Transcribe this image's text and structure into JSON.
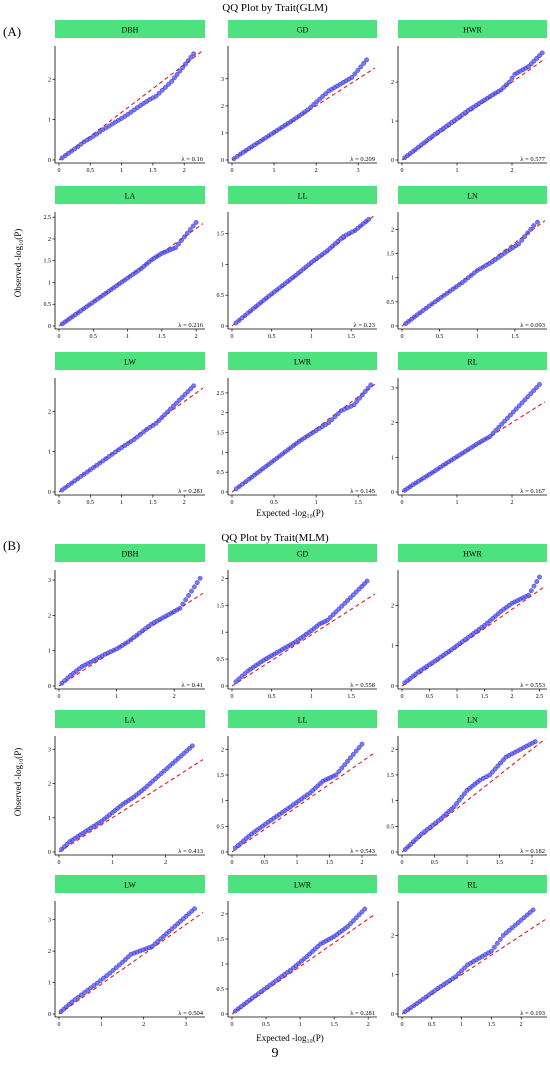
{
  "figure": {
    "sections": [
      {
        "tag": "(A)",
        "title": "QQ Plot by Trait(GLM)",
        "ylabel": "Observed -log₁₀(P)",
        "xlabel": "Expected -log₁₀(P)"
      },
      {
        "tag": "(B)",
        "title": "QQ Plot by Trait(MLM)",
        "ylabel": "Observed -log₁₀(P)",
        "xlabel": "Expected -log₁₀(P)"
      }
    ],
    "page_number": "9",
    "colors": {
      "header_fill": "#4ee27e",
      "points": "#4c4cf2",
      "point_edge": "#3030c0",
      "reference_line": "#e31a1c"
    }
  },
  "chart_data": [
    {
      "type": "scatter",
      "section": "A",
      "panel": "DBH",
      "lambda": "λ = 0.16",
      "xlim": [
        0,
        2.3
      ],
      "ylim": [
        0,
        2.75
      ],
      "xticks": [
        0,
        0.5,
        1,
        1.5,
        2
      ],
      "yticks": [
        0,
        1,
        2
      ],
      "ref_slope": 1.18,
      "points": [
        [
          0.05,
          0.05
        ],
        [
          0.1,
          0.11
        ],
        [
          0.2,
          0.22
        ],
        [
          0.3,
          0.33
        ],
        [
          0.4,
          0.45
        ],
        [
          0.5,
          0.54
        ],
        [
          0.6,
          0.64
        ],
        [
          0.7,
          0.75
        ],
        [
          0.8,
          0.84
        ],
        [
          0.9,
          0.94
        ],
        [
          1.0,
          1.03
        ],
        [
          1.1,
          1.13
        ],
        [
          1.3,
          1.35
        ],
        [
          1.45,
          1.5
        ],
        [
          1.55,
          1.58
        ],
        [
          1.8,
          1.95
        ],
        [
          2.15,
          2.63
        ]
      ]
    },
    {
      "type": "scatter",
      "section": "A",
      "panel": "GD",
      "lambda": "λ = 0.209",
      "xlim": [
        0,
        3.4
      ],
      "ylim": [
        0,
        4.1
      ],
      "xticks": [
        0,
        1,
        2,
        3
      ],
      "yticks": [
        0,
        1,
        2,
        3
      ],
      "ref_slope": 1.0,
      "points": [
        [
          0.05,
          0.05
        ],
        [
          0.2,
          0.22
        ],
        [
          0.4,
          0.42
        ],
        [
          0.6,
          0.62
        ],
        [
          0.8,
          0.82
        ],
        [
          1.0,
          1.02
        ],
        [
          1.2,
          1.22
        ],
        [
          1.4,
          1.42
        ],
        [
          1.6,
          1.63
        ],
        [
          1.8,
          1.85
        ],
        [
          2.3,
          2.55
        ],
        [
          2.85,
          3.05
        ],
        [
          3.2,
          3.7
        ]
      ]
    },
    {
      "type": "scatter",
      "section": "A",
      "panel": "HWR",
      "lambda": "λ = 0.577",
      "xlim": [
        0,
        2.6
      ],
      "ylim": [
        0,
        2.85
      ],
      "xticks": [
        0,
        1,
        2
      ],
      "yticks": [
        0,
        1,
        2
      ],
      "ref_slope": 1.0,
      "points": [
        [
          0.05,
          0.06
        ],
        [
          0.2,
          0.22
        ],
        [
          0.4,
          0.44
        ],
        [
          0.6,
          0.66
        ],
        [
          0.8,
          0.86
        ],
        [
          1.0,
          1.06
        ],
        [
          1.2,
          1.27
        ],
        [
          1.4,
          1.45
        ],
        [
          1.6,
          1.63
        ],
        [
          1.8,
          1.8
        ],
        [
          1.95,
          2.0
        ],
        [
          2.05,
          2.2
        ],
        [
          2.3,
          2.4
        ],
        [
          2.55,
          2.75
        ]
      ]
    },
    {
      "type": "scatter",
      "section": "A",
      "panel": "LA",
      "lambda": "λ = 0.216",
      "xlim": [
        0,
        2.1
      ],
      "ylim": [
        0,
        2.55
      ],
      "xticks": [
        0,
        0.5,
        1,
        1.5,
        2
      ],
      "yticks": [
        0,
        0.5,
        1,
        1.5,
        2,
        2.5
      ],
      "ref_slope": 1.12,
      "points": [
        [
          0.05,
          0.05
        ],
        [
          0.2,
          0.22
        ],
        [
          0.4,
          0.44
        ],
        [
          0.6,
          0.66
        ],
        [
          0.8,
          0.88
        ],
        [
          1.0,
          1.1
        ],
        [
          1.2,
          1.32
        ],
        [
          1.35,
          1.52
        ],
        [
          1.5,
          1.67
        ],
        [
          1.7,
          1.8
        ],
        [
          2.0,
          2.38
        ]
      ]
    },
    {
      "type": "scatter",
      "section": "A",
      "panel": "LL",
      "lambda": "λ = 0.23",
      "xlim": [
        0,
        1.8
      ],
      "ylim": [
        0,
        1.8
      ],
      "xticks": [
        0,
        0.5,
        1,
        1.5
      ],
      "yticks": [
        0,
        0.5,
        1,
        1.5
      ],
      "ref_slope": 1.0,
      "points": [
        [
          0.05,
          0.05
        ],
        [
          0.2,
          0.21
        ],
        [
          0.4,
          0.42
        ],
        [
          0.6,
          0.62
        ],
        [
          0.8,
          0.82
        ],
        [
          1.0,
          1.03
        ],
        [
          1.2,
          1.22
        ],
        [
          1.4,
          1.45
        ],
        [
          1.55,
          1.55
        ],
        [
          1.72,
          1.73
        ]
      ]
    },
    {
      "type": "scatter",
      "section": "A",
      "panel": "LN",
      "lambda": "λ = 0.093",
      "xlim": [
        0,
        1.9
      ],
      "ylim": [
        0,
        2.3
      ],
      "xticks": [
        0,
        0.5,
        1,
        1.5
      ],
      "yticks": [
        0,
        0.5,
        1,
        1.5,
        2
      ],
      "ref_slope": 1.15,
      "points": [
        [
          0.05,
          0.05
        ],
        [
          0.2,
          0.23
        ],
        [
          0.4,
          0.46
        ],
        [
          0.6,
          0.68
        ],
        [
          0.8,
          0.9
        ],
        [
          1.0,
          1.15
        ],
        [
          1.2,
          1.33
        ],
        [
          1.4,
          1.55
        ],
        [
          1.55,
          1.7
        ],
        [
          1.75,
          2.08
        ],
        [
          1.8,
          2.15
        ]
      ]
    },
    {
      "type": "scatter",
      "section": "A",
      "panel": "LW",
      "lambda": "λ = 0.281",
      "xlim": [
        0,
        2.3
      ],
      "ylim": [
        0,
        2.75
      ],
      "xticks": [
        0,
        0.5,
        1,
        1.5,
        2
      ],
      "yticks": [
        0,
        1,
        2
      ],
      "ref_slope": 1.12,
      "points": [
        [
          0.05,
          0.05
        ],
        [
          0.2,
          0.22
        ],
        [
          0.4,
          0.44
        ],
        [
          0.6,
          0.66
        ],
        [
          0.8,
          0.88
        ],
        [
          1.0,
          1.1
        ],
        [
          1.2,
          1.3
        ],
        [
          1.4,
          1.55
        ],
        [
          1.55,
          1.7
        ],
        [
          2.15,
          2.63
        ]
      ]
    },
    {
      "type": "scatter",
      "section": "A",
      "panel": "LWR",
      "lambda": "λ = 0.145",
      "xlim": [
        0,
        1.7
      ],
      "ylim": [
        0,
        2.8
      ],
      "xticks": [
        0,
        0.5,
        1,
        1.5
      ],
      "yticks": [
        0,
        0.5,
        1,
        1.5,
        2,
        2.5
      ],
      "ref_slope": 1.6,
      "points": [
        [
          0.05,
          0.08
        ],
        [
          0.2,
          0.32
        ],
        [
          0.4,
          0.64
        ],
        [
          0.6,
          0.96
        ],
        [
          0.8,
          1.28
        ],
        [
          1.0,
          1.55
        ],
        [
          1.15,
          1.75
        ],
        [
          1.3,
          2.05
        ],
        [
          1.45,
          2.2
        ],
        [
          1.65,
          2.7
        ]
      ]
    },
    {
      "type": "scatter",
      "section": "A",
      "panel": "RL",
      "lambda": "λ = 0.167",
      "xlim": [
        0,
        2.6
      ],
      "ylim": [
        0,
        3.2
      ],
      "xticks": [
        0,
        1,
        2
      ],
      "yticks": [
        0,
        1,
        2,
        3
      ],
      "ref_slope": 1.0,
      "points": [
        [
          0.05,
          0.05
        ],
        [
          0.2,
          0.21
        ],
        [
          0.4,
          0.41
        ],
        [
          0.6,
          0.61
        ],
        [
          0.8,
          0.82
        ],
        [
          1.0,
          1.02
        ],
        [
          1.2,
          1.22
        ],
        [
          1.4,
          1.42
        ],
        [
          1.6,
          1.6
        ],
        [
          2.5,
          3.1
        ]
      ]
    },
    {
      "type": "scatter",
      "section": "B",
      "panel": "DBH",
      "lambda": "λ = 0.41",
      "xlim": [
        0,
        2.5
      ],
      "ylim": [
        0,
        3.2
      ],
      "xticks": [
        0,
        1,
        2
      ],
      "yticks": [
        0,
        1,
        2,
        3
      ],
      "ref_slope": 1.05,
      "points": [
        [
          0.05,
          0.08
        ],
        [
          0.2,
          0.3
        ],
        [
          0.4,
          0.55
        ],
        [
          0.6,
          0.72
        ],
        [
          0.8,
          0.9
        ],
        [
          1.0,
          1.05
        ],
        [
          1.2,
          1.25
        ],
        [
          1.4,
          1.5
        ],
        [
          1.6,
          1.75
        ],
        [
          2.1,
          2.2
        ],
        [
          2.45,
          3.05
        ]
      ]
    },
    {
      "type": "scatter",
      "section": "B",
      "panel": "GD",
      "lambda": "λ = 0.558",
      "xlim": [
        0,
        1.8
      ],
      "ylim": [
        0,
        2.1
      ],
      "xticks": [
        0,
        0.5,
        1,
        1.5
      ],
      "yticks": [
        0,
        0.5,
        1,
        1.5,
        2
      ],
      "ref_slope": 0.95,
      "points": [
        [
          0.05,
          0.08
        ],
        [
          0.2,
          0.28
        ],
        [
          0.4,
          0.48
        ],
        [
          0.6,
          0.65
        ],
        [
          0.8,
          0.82
        ],
        [
          1.0,
          1.03
        ],
        [
          1.1,
          1.15
        ],
        [
          1.2,
          1.22
        ],
        [
          1.6,
          1.8
        ],
        [
          1.7,
          1.95
        ]
      ]
    },
    {
      "type": "scatter",
      "section": "B",
      "panel": "HWR",
      "lambda": "λ = 0.553",
      "xlim": [
        0,
        2.6
      ],
      "ylim": [
        0,
        2.8
      ],
      "xticks": [
        0,
        0.5,
        1,
        1.5,
        2,
        2.5
      ],
      "yticks": [
        0,
        1,
        2
      ],
      "ref_slope": 0.95,
      "points": [
        [
          0.05,
          0.08
        ],
        [
          0.3,
          0.35
        ],
        [
          0.6,
          0.62
        ],
        [
          0.9,
          0.9
        ],
        [
          1.2,
          1.2
        ],
        [
          1.5,
          1.5
        ],
        [
          1.8,
          1.85
        ],
        [
          2.0,
          2.05
        ],
        [
          2.3,
          2.25
        ],
        [
          2.5,
          2.7
        ]
      ]
    },
    {
      "type": "scatter",
      "section": "B",
      "panel": "LA",
      "lambda": "λ = 0.413",
      "xlim": [
        0,
        2.7
      ],
      "ylim": [
        0,
        3.3
      ],
      "xticks": [
        0,
        1,
        2
      ],
      "yticks": [
        0,
        1,
        2,
        3
      ],
      "ref_slope": 1.0,
      "points": [
        [
          0.05,
          0.08
        ],
        [
          0.2,
          0.3
        ],
        [
          0.4,
          0.5
        ],
        [
          0.6,
          0.7
        ],
        [
          0.8,
          0.9
        ],
        [
          1.0,
          1.15
        ],
        [
          1.2,
          1.4
        ],
        [
          1.4,
          1.6
        ],
        [
          1.6,
          1.85
        ],
        [
          2.5,
          3.1
        ]
      ]
    },
    {
      "type": "scatter",
      "section": "B",
      "panel": "LL",
      "lambda": "λ = 0.543",
      "xlim": [
        0,
        2.2
      ],
      "ylim": [
        0,
        2.2
      ],
      "xticks": [
        0,
        0.5,
        1,
        1.5,
        2
      ],
      "yticks": [
        0,
        0.5,
        1,
        1.5,
        2
      ],
      "ref_slope": 0.88,
      "points": [
        [
          0.05,
          0.08
        ],
        [
          0.3,
          0.35
        ],
        [
          0.6,
          0.62
        ],
        [
          0.9,
          0.88
        ],
        [
          1.2,
          1.15
        ],
        [
          1.4,
          1.38
        ],
        [
          1.6,
          1.5
        ],
        [
          2.0,
          2.1
        ]
      ]
    },
    {
      "type": "scatter",
      "section": "B",
      "panel": "LN",
      "lambda": "λ = 0.182",
      "xlim": [
        0,
        2.2
      ],
      "ylim": [
        0,
        2.2
      ],
      "xticks": [
        0,
        0.5,
        1,
        1.5,
        2
      ],
      "yticks": [
        0,
        0.5,
        1,
        1.5,
        2
      ],
      "ref_slope": 1.0,
      "points": [
        [
          0.05,
          0.05
        ],
        [
          0.3,
          0.35
        ],
        [
          0.6,
          0.65
        ],
        [
          0.8,
          0.88
        ],
        [
          1.0,
          1.2
        ],
        [
          1.2,
          1.4
        ],
        [
          1.35,
          1.5
        ],
        [
          1.6,
          1.85
        ],
        [
          2.05,
          2.15
        ]
      ]
    },
    {
      "type": "scatter",
      "section": "B",
      "panel": "LW",
      "lambda": "λ = 0.504",
      "xlim": [
        0,
        3.4
      ],
      "ylim": [
        0,
        3.5
      ],
      "xticks": [
        0,
        1,
        2,
        3
      ],
      "yticks": [
        0,
        1,
        2,
        3
      ],
      "ref_slope": 0.95,
      "points": [
        [
          0.05,
          0.08
        ],
        [
          0.3,
          0.38
        ],
        [
          0.6,
          0.68
        ],
        [
          0.9,
          0.98
        ],
        [
          1.2,
          1.3
        ],
        [
          1.5,
          1.65
        ],
        [
          1.7,
          1.9
        ],
        [
          2.2,
          2.15
        ],
        [
          3.2,
          3.35
        ]
      ]
    },
    {
      "type": "scatter",
      "section": "B",
      "panel": "LWR",
      "lambda": "λ = 0.281",
      "xlim": [
        0,
        2.1
      ],
      "ylim": [
        0,
        2.2
      ],
      "xticks": [
        0,
        0.5,
        1,
        1.5,
        2
      ],
      "yticks": [
        0,
        0.5,
        1,
        1.5,
        2
      ],
      "ref_slope": 0.95,
      "points": [
        [
          0.05,
          0.06
        ],
        [
          0.3,
          0.32
        ],
        [
          0.6,
          0.62
        ],
        [
          0.9,
          0.92
        ],
        [
          1.1,
          1.15
        ],
        [
          1.3,
          1.4
        ],
        [
          1.5,
          1.55
        ],
        [
          1.7,
          1.75
        ],
        [
          1.95,
          2.1
        ]
      ]
    },
    {
      "type": "scatter",
      "section": "B",
      "panel": "RL",
      "lambda": "λ = 0.193",
      "xlim": [
        0,
        2.4
      ],
      "ylim": [
        0,
        2.8
      ],
      "xticks": [
        0,
        0.5,
        1,
        1.5,
        2
      ],
      "yticks": [
        0,
        1,
        2
      ],
      "ref_slope": 1.0,
      "points": [
        [
          0.05,
          0.06
        ],
        [
          0.3,
          0.32
        ],
        [
          0.6,
          0.65
        ],
        [
          0.9,
          0.95
        ],
        [
          1.1,
          1.25
        ],
        [
          1.5,
          1.6
        ],
        [
          1.7,
          2.0
        ],
        [
          2.2,
          2.65
        ]
      ]
    }
  ]
}
